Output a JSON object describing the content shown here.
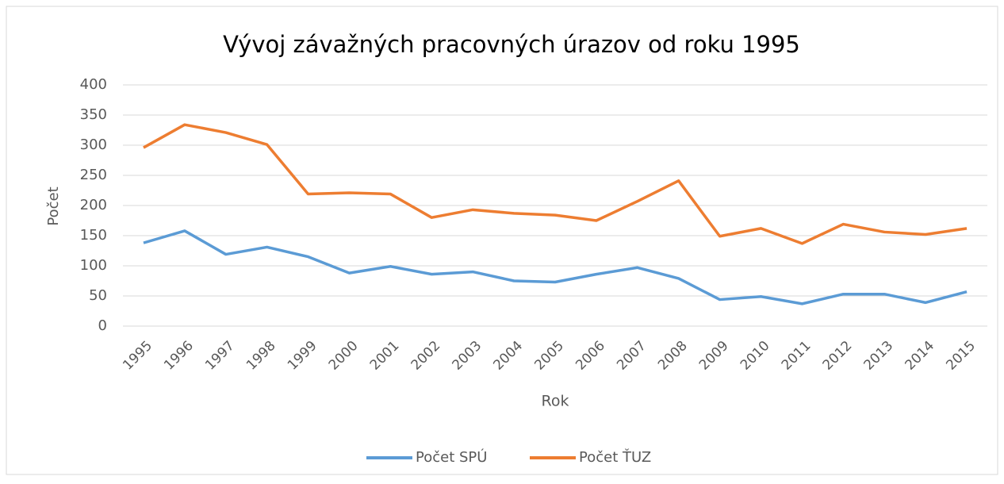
{
  "chart_data": {
    "type": "line",
    "title": "Vývoj závažných pracovných úrazov od roku 1995",
    "x_label": "Rok",
    "y_label": "Počet",
    "categories": [
      "1995",
      "1996",
      "1997",
      "1998",
      "1999",
      "2000",
      "2001",
      "2002",
      "2003",
      "2004",
      "2005",
      "2006",
      "2007",
      "2008",
      "2009",
      "2010",
      "2011",
      "2012",
      "2013",
      "2014",
      "2015"
    ],
    "series": [
      {
        "name": "Počet SPÚ",
        "color": "#5b9bd5",
        "values": [
          138,
          158,
          119,
          131,
          115,
          88,
          99,
          86,
          90,
          75,
          73,
          86,
          97,
          79,
          44,
          49,
          37,
          53,
          53,
          39,
          57
        ]
      },
      {
        "name": "Počet ŤUZ",
        "color": "#ed7d31",
        "values": [
          296,
          334,
          321,
          301,
          219,
          221,
          219,
          180,
          193,
          187,
          184,
          175,
          207,
          241,
          149,
          162,
          137,
          169,
          156,
          152,
          162
        ]
      }
    ],
    "ylim": [
      0,
      400
    ],
    "yticks": [
      0,
      50,
      100,
      150,
      200,
      250,
      300,
      350,
      400
    ],
    "grid": true,
    "legend": "bottom"
  }
}
